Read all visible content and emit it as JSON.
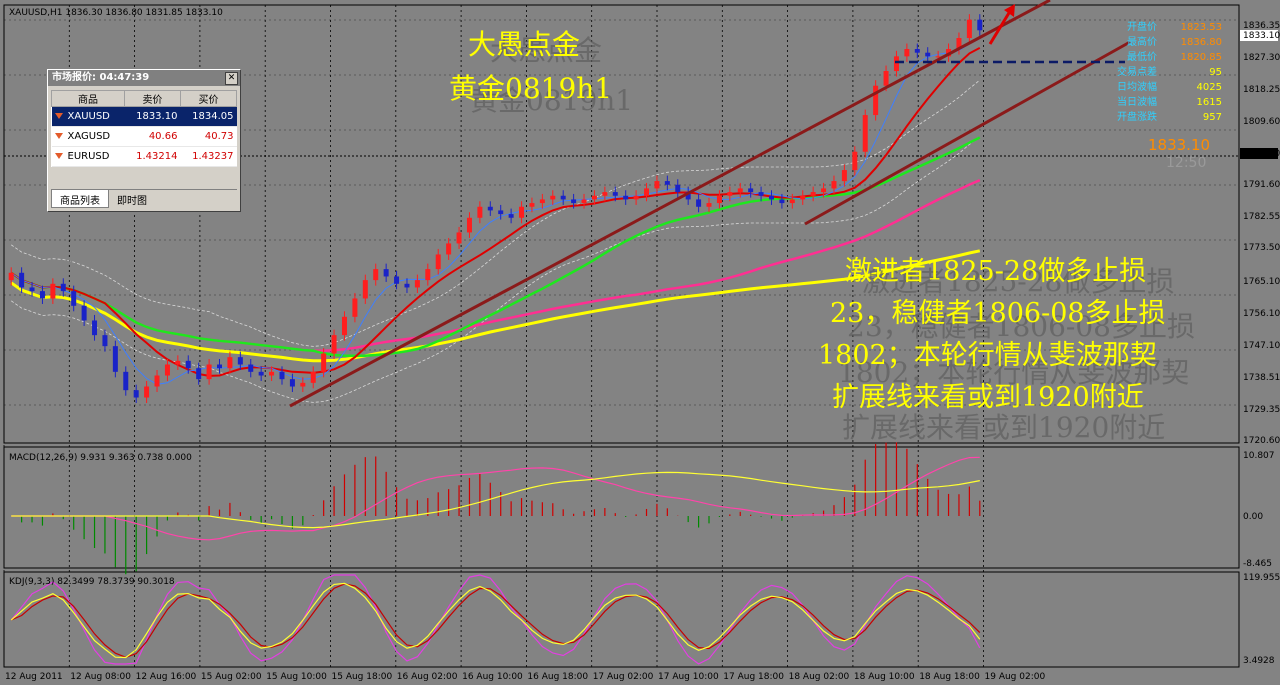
{
  "header": {
    "main": "XAUUSD,H1  1836.30 1836.80 1831.85 1833.10",
    "macd": "MACD(12,26,9) 9.931 9.363 0.738 0.000",
    "kdj": "KDJ(9,3,3) 82.3499 78.3739 90.3018"
  },
  "overlay": {
    "title1": "大愚点金",
    "title2": "黄金0819h1",
    "note": [
      "激进者1825-28做多止损",
      "23，稳健者1806-08多止损",
      "1802；本轮行情从斐波那契",
      "扩展线来看或到1920附近"
    ],
    "price_big": "1833.10",
    "time_ghost": "12:50"
  },
  "stats": [
    {
      "label": "开盘价",
      "value": "1823.53"
    },
    {
      "label": "最高价",
      "value": "1836.80"
    },
    {
      "label": "最低价",
      "value": "1820.85"
    },
    {
      "label": "交易点差",
      "value": "95"
    },
    {
      "label": "日均波幅",
      "value": "4025"
    },
    {
      "label": "当日波幅",
      "value": "1615"
    },
    {
      "label": "开盘涨跌",
      "value": "957"
    }
  ],
  "price_axis": [
    "1836.35",
    "1833.10",
    "1827.30",
    "1818.25",
    "1809.60",
    "1800.70",
    "1791.60",
    "1782.55",
    "1773.50",
    "1765.10",
    "1756.10",
    "1747.10",
    "1738.51",
    "1729.35",
    "1720.60"
  ],
  "macd_axis": [
    "10.807",
    "0.00",
    "-8.465"
  ],
  "kdj_axis": [
    "119.9551",
    "3.4928"
  ],
  "time_axis": [
    "12 Aug 2011",
    "12 Aug 08:00",
    "12 Aug 16:00",
    "15 Aug 02:00",
    "15 Aug 10:00",
    "15 Aug 18:00",
    "16 Aug 02:00",
    "16 Aug 10:00",
    "16 Aug 18:00",
    "17 Aug 02:00",
    "17 Aug 10:00",
    "17 Aug 18:00",
    "18 Aug 02:00",
    "18 Aug 10:00",
    "18 Aug 18:00",
    "19 Aug 02:00"
  ],
  "market_watch": {
    "title": "市场报价: 04:47:39",
    "cols": [
      "商品",
      "卖价",
      "买价"
    ],
    "rows": [
      {
        "sym": "XAUUSD",
        "bid": "1833.10",
        "ask": "1834.05"
      },
      {
        "sym": "XAGUSD",
        "bid": "40.66",
        "ask": "40.73"
      },
      {
        "sym": "EURUSD",
        "bid": "1.43214",
        "ask": "1.43237"
      }
    ],
    "tabs": [
      "商品列表",
      "即时图"
    ]
  },
  "chart_data": {
    "type": "line",
    "title": "XAUUSD,H1",
    "ylim": [
      1720.6,
      1840
    ],
    "series": [
      {
        "name": "XAUUSD",
        "values": [
          1767,
          1763,
          1762,
          1760,
          1764,
          1762,
          1758,
          1754,
          1750,
          1747,
          1740,
          1735,
          1733,
          1736,
          1739,
          1742,
          1743,
          1741,
          1738,
          1742,
          1741,
          1744,
          1742,
          1740,
          1739,
          1740,
          1738,
          1736,
          1737,
          1740,
          1745,
          1750,
          1755,
          1760,
          1765,
          1768,
          1766,
          1764,
          1763,
          1765,
          1768,
          1772,
          1775,
          1778,
          1782,
          1785,
          1784,
          1783,
          1782,
          1785,
          1786,
          1787,
          1788,
          1787,
          1786,
          1787,
          1788,
          1789,
          1788,
          1787,
          1788,
          1790,
          1792,
          1791,
          1789,
          1787,
          1785,
          1786,
          1788,
          1789,
          1790,
          1789,
          1788,
          1787,
          1786,
          1787,
          1788,
          1789,
          1790,
          1792,
          1795,
          1800,
          1810,
          1818,
          1822,
          1826,
          1828,
          1827,
          1826,
          1826,
          1828,
          1831,
          1836,
          1833.1
        ]
      }
    ]
  }
}
